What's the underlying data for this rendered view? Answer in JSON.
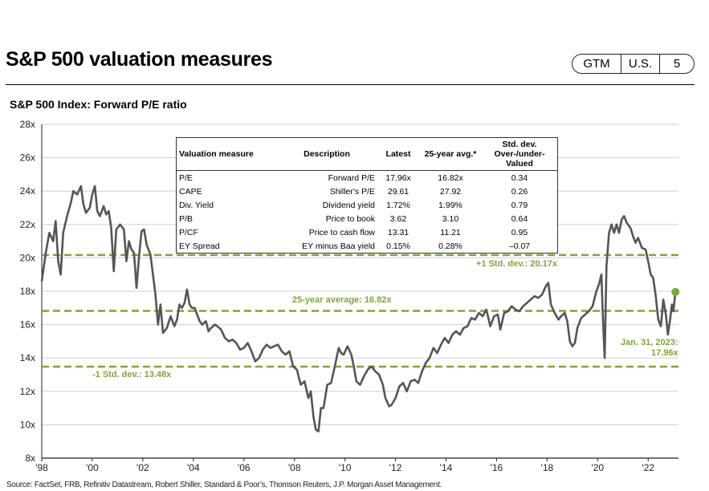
{
  "header": {
    "title": "S&P 500 valuation measures",
    "badge": [
      "GTM",
      "U.S.",
      "5"
    ]
  },
  "source_note": "Source: FactSet, FRB, Refinitiv Datastream, Robert Shiller, Standard & Poor’s, Thomson Reuters, J.P. Morgan Asset Management.",
  "colors": {
    "line": "#555555",
    "accent": "#7ea63a",
    "grid": "#d0d0d0"
  },
  "table": {
    "headers": [
      "Valuation measure",
      "Description",
      "Latest",
      "25-year avg.*",
      "Std. dev. Over-/under-Valued"
    ],
    "rows": [
      [
        "P/E",
        "Forward P/E",
        "17.96x",
        "16.82x",
        "0.34"
      ],
      [
        "CAPE",
        "Shiller's P/E",
        "29.61",
        "27.92",
        "0.26"
      ],
      [
        "Div. Yield",
        "Dividend yield",
        "1.72%",
        "1.99%",
        "0.79"
      ],
      [
        "P/B",
        "Price to book",
        "3.62",
        "3.10",
        "0.64"
      ],
      [
        "P/CF",
        "Price to cash flow",
        "13.31",
        "11.21",
        "0.95"
      ],
      [
        "EY Spread",
        "EY minus Baa yield",
        "0.15%",
        "0.28%",
        "–0.07"
      ]
    ]
  },
  "chart_data": {
    "type": "line",
    "title": "S&P 500 Index: Forward P/E ratio",
    "xlabel": "",
    "ylabel": "",
    "xlim": [
      1998,
      2023.2
    ],
    "ylim": [
      8,
      28
    ],
    "y_ticks": [
      "8x",
      "10x",
      "12x",
      "14x",
      "16x",
      "18x",
      "20x",
      "22x",
      "24x",
      "26x",
      "28x"
    ],
    "x_ticks": [
      "'98",
      "'00",
      "'02",
      "'04",
      "'06",
      "'08",
      "'10",
      "'12",
      "'14",
      "'16",
      "'18",
      "'20",
      "'22"
    ],
    "grid": true,
    "reference_lines": [
      {
        "label": "+1 Std. dev.: 20.17x",
        "value": 20.17
      },
      {
        "label": "25-year average: 16.82x",
        "value": 16.82
      },
      {
        "label": "-1 Std. dev.: 13.48x",
        "value": 13.48
      }
    ],
    "latest_point": {
      "label": "Jan. 31, 2023:",
      "value_label": "17.96x",
      "x": 2023.08,
      "y": 17.96
    },
    "series": [
      {
        "points": [
          [
            1998.0,
            18.6
          ],
          [
            1998.15,
            20.2
          ],
          [
            1998.3,
            21.5
          ],
          [
            1998.45,
            21.0
          ],
          [
            1998.55,
            22.2
          ],
          [
            1998.65,
            19.8
          ],
          [
            1998.75,
            19.0
          ],
          [
            1998.85,
            21.5
          ],
          [
            1999.0,
            22.5
          ],
          [
            1999.15,
            23.3
          ],
          [
            1999.25,
            24.0
          ],
          [
            1999.4,
            23.8
          ],
          [
            1999.55,
            24.3
          ],
          [
            1999.65,
            23.2
          ],
          [
            1999.75,
            22.7
          ],
          [
            1999.9,
            23.0
          ],
          [
            2000.0,
            23.8
          ],
          [
            2000.1,
            24.3
          ],
          [
            2000.2,
            22.8
          ],
          [
            2000.3,
            22.5
          ],
          [
            2000.45,
            23.1
          ],
          [
            2000.55,
            22.6
          ],
          [
            2000.65,
            22.8
          ],
          [
            2000.75,
            21.8
          ],
          [
            2000.85,
            19.2
          ],
          [
            2000.95,
            21.7
          ],
          [
            2001.1,
            22.0
          ],
          [
            2001.25,
            21.7
          ],
          [
            2001.35,
            19.8
          ],
          [
            2001.45,
            21.0
          ],
          [
            2001.55,
            20.5
          ],
          [
            2001.65,
            20.3
          ],
          [
            2001.75,
            18.2
          ],
          [
            2001.85,
            20.1
          ],
          [
            2001.95,
            21.6
          ],
          [
            2002.05,
            21.7
          ],
          [
            2002.15,
            20.8
          ],
          [
            2002.3,
            20.2
          ],
          [
            2002.4,
            19.0
          ],
          [
            2002.5,
            17.8
          ],
          [
            2002.6,
            16.0
          ],
          [
            2002.7,
            17.2
          ],
          [
            2002.8,
            15.5
          ],
          [
            2002.95,
            15.8
          ],
          [
            2003.1,
            16.5
          ],
          [
            2003.25,
            15.9
          ],
          [
            2003.35,
            16.3
          ],
          [
            2003.45,
            17.2
          ],
          [
            2003.55,
            17.0
          ],
          [
            2003.65,
            17.3
          ],
          [
            2003.75,
            18.1
          ],
          [
            2003.85,
            17.2
          ],
          [
            2003.95,
            17.0
          ],
          [
            2004.05,
            17.0
          ],
          [
            2004.15,
            16.6
          ],
          [
            2004.25,
            16.2
          ],
          [
            2004.35,
            16.0
          ],
          [
            2004.5,
            16.2
          ],
          [
            2004.6,
            15.6
          ],
          [
            2004.7,
            15.8
          ],
          [
            2004.85,
            16.0
          ],
          [
            2004.95,
            15.9
          ],
          [
            2005.1,
            15.7
          ],
          [
            2005.25,
            15.2
          ],
          [
            2005.4,
            15.0
          ],
          [
            2005.55,
            15.1
          ],
          [
            2005.7,
            14.9
          ],
          [
            2005.85,
            14.5
          ],
          [
            2006.0,
            14.6
          ],
          [
            2006.15,
            14.9
          ],
          [
            2006.3,
            14.4
          ],
          [
            2006.45,
            13.8
          ],
          [
            2006.6,
            14.0
          ],
          [
            2006.75,
            14.5
          ],
          [
            2006.9,
            14.8
          ],
          [
            2007.05,
            14.6
          ],
          [
            2007.2,
            14.7
          ],
          [
            2007.35,
            14.8
          ],
          [
            2007.5,
            14.4
          ],
          [
            2007.65,
            14.2
          ],
          [
            2007.8,
            14.4
          ],
          [
            2007.95,
            13.5
          ],
          [
            2008.1,
            13.3
          ],
          [
            2008.25,
            12.4
          ],
          [
            2008.4,
            12.6
          ],
          [
            2008.55,
            11.6
          ],
          [
            2008.65,
            12.0
          ],
          [
            2008.75,
            10.5
          ],
          [
            2008.85,
            9.7
          ],
          [
            2008.95,
            9.6
          ],
          [
            2009.05,
            11.0
          ],
          [
            2009.15,
            11.0
          ],
          [
            2009.3,
            12.4
          ],
          [
            2009.45,
            12.5
          ],
          [
            2009.6,
            13.5
          ],
          [
            2009.75,
            14.6
          ],
          [
            2009.85,
            14.3
          ],
          [
            2009.95,
            14.2
          ],
          [
            2010.1,
            14.7
          ],
          [
            2010.25,
            14.2
          ],
          [
            2010.35,
            13.5
          ],
          [
            2010.45,
            12.6
          ],
          [
            2010.6,
            12.4
          ],
          [
            2010.75,
            12.9
          ],
          [
            2010.9,
            13.3
          ],
          [
            2011.05,
            13.5
          ],
          [
            2011.2,
            13.2
          ],
          [
            2011.35,
            13.0
          ],
          [
            2011.5,
            12.4
          ],
          [
            2011.6,
            11.6
          ],
          [
            2011.75,
            11.1
          ],
          [
            2011.85,
            11.2
          ],
          [
            2012.0,
            11.6
          ],
          [
            2012.15,
            12.3
          ],
          [
            2012.3,
            12.5
          ],
          [
            2012.45,
            12.0
          ],
          [
            2012.6,
            12.6
          ],
          [
            2012.75,
            12.7
          ],
          [
            2012.9,
            12.5
          ],
          [
            2013.05,
            13.2
          ],
          [
            2013.2,
            13.7
          ],
          [
            2013.35,
            14.0
          ],
          [
            2013.5,
            14.6
          ],
          [
            2013.65,
            14.3
          ],
          [
            2013.8,
            14.8
          ],
          [
            2013.95,
            15.2
          ],
          [
            2014.1,
            14.9
          ],
          [
            2014.25,
            15.4
          ],
          [
            2014.4,
            15.6
          ],
          [
            2014.55,
            15.4
          ],
          [
            2014.7,
            15.8
          ],
          [
            2014.85,
            15.9
          ],
          [
            2015.0,
            16.4
          ],
          [
            2015.15,
            16.3
          ],
          [
            2015.3,
            16.7
          ],
          [
            2015.45,
            16.5
          ],
          [
            2015.6,
            16.9
          ],
          [
            2015.75,
            15.9
          ],
          [
            2015.9,
            16.5
          ],
          [
            2016.05,
            16.6
          ],
          [
            2016.15,
            15.7
          ],
          [
            2016.3,
            16.7
          ],
          [
            2016.45,
            16.8
          ],
          [
            2016.6,
            17.1
          ],
          [
            2016.75,
            16.9
          ],
          [
            2016.9,
            16.8
          ],
          [
            2017.05,
            17.1
          ],
          [
            2017.2,
            17.3
          ],
          [
            2017.35,
            17.5
          ],
          [
            2017.5,
            17.7
          ],
          [
            2017.65,
            17.6
          ],
          [
            2017.8,
            17.8
          ],
          [
            2017.95,
            18.3
          ],
          [
            2018.05,
            18.5
          ],
          [
            2018.15,
            17.2
          ],
          [
            2018.3,
            16.7
          ],
          [
            2018.45,
            16.3
          ],
          [
            2018.55,
            16.5
          ],
          [
            2018.7,
            16.7
          ],
          [
            2018.8,
            16.2
          ],
          [
            2018.9,
            15.0
          ],
          [
            2019.0,
            14.7
          ],
          [
            2019.1,
            14.9
          ],
          [
            2019.2,
            15.8
          ],
          [
            2019.35,
            16.4
          ],
          [
            2019.5,
            16.6
          ],
          [
            2019.65,
            16.8
          ],
          [
            2019.8,
            17.1
          ],
          [
            2019.95,
            18.0
          ],
          [
            2020.05,
            18.4
          ],
          [
            2020.15,
            19.0
          ],
          [
            2020.22,
            16.0
          ],
          [
            2020.28,
            14.0
          ],
          [
            2020.35,
            19.5
          ],
          [
            2020.45,
            21.5
          ],
          [
            2020.55,
            22.0
          ],
          [
            2020.65,
            21.5
          ],
          [
            2020.75,
            22.0
          ],
          [
            2020.85,
            21.5
          ],
          [
            2020.95,
            22.3
          ],
          [
            2021.05,
            22.5
          ],
          [
            2021.15,
            22.1
          ],
          [
            2021.3,
            21.8
          ],
          [
            2021.4,
            21.3
          ],
          [
            2021.5,
            20.9
          ],
          [
            2021.6,
            21.2
          ],
          [
            2021.75,
            20.6
          ],
          [
            2021.9,
            20.5
          ],
          [
            2022.0,
            19.8
          ],
          [
            2022.1,
            19.0
          ],
          [
            2022.2,
            18.8
          ],
          [
            2022.3,
            17.7
          ],
          [
            2022.4,
            16.3
          ],
          [
            2022.5,
            15.9
          ],
          [
            2022.6,
            17.5
          ],
          [
            2022.7,
            16.6
          ],
          [
            2022.78,
            15.4
          ],
          [
            2022.86,
            16.2
          ],
          [
            2022.94,
            17.2
          ],
          [
            2023.0,
            16.8
          ],
          [
            2023.08,
            17.96
          ]
        ]
      }
    ]
  }
}
